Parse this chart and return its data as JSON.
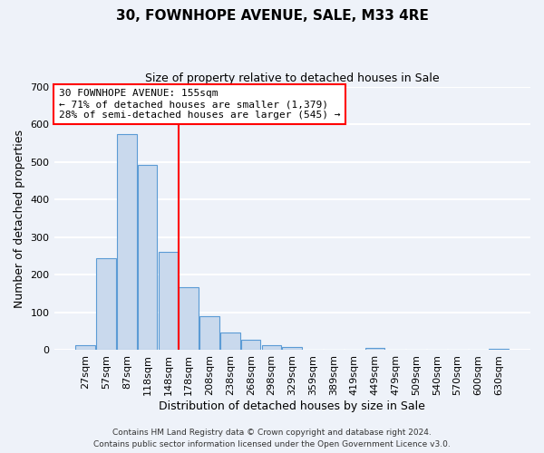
{
  "title": "30, FOWNHOPE AVENUE, SALE, M33 4RE",
  "subtitle": "Size of property relative to detached houses in Sale",
  "xlabel": "Distribution of detached houses by size in Sale",
  "ylabel": "Number of detached properties",
  "bar_labels": [
    "27sqm",
    "57sqm",
    "87sqm",
    "118sqm",
    "148sqm",
    "178sqm",
    "208sqm",
    "238sqm",
    "268sqm",
    "298sqm",
    "329sqm",
    "359sqm",
    "389sqm",
    "419sqm",
    "449sqm",
    "479sqm",
    "509sqm",
    "540sqm",
    "570sqm",
    "600sqm",
    "630sqm"
  ],
  "bar_values": [
    12,
    243,
    573,
    493,
    260,
    168,
    90,
    47,
    27,
    14,
    8,
    2,
    0,
    0,
    5,
    0,
    0,
    0,
    0,
    0,
    3
  ],
  "bar_color": "#c9d9ed",
  "bar_edge_color": "#5b9bd5",
  "vline_x": 4.5,
  "vline_color": "red",
  "annotation_text": "30 FOWNHOPE AVENUE: 155sqm\n← 71% of detached houses are smaller (1,379)\n28% of semi-detached houses are larger (545) →",
  "annotation_box_color": "white",
  "annotation_box_edge": "red",
  "ylim": [
    0,
    700
  ],
  "yticks": [
    0,
    100,
    200,
    300,
    400,
    500,
    600,
    700
  ],
  "footer_line1": "Contains HM Land Registry data © Crown copyright and database right 2024.",
  "footer_line2": "Contains public sector information licensed under the Open Government Licence v3.0.",
  "bg_color": "#eef2f9",
  "grid_color": "white"
}
